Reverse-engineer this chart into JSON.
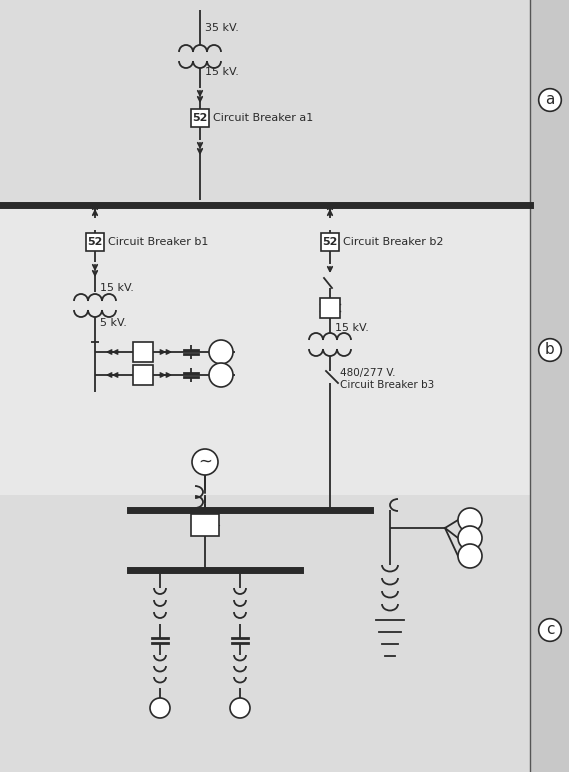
{
  "bg_a": "#dcdcdc",
  "bg_b": "#e8e8e8",
  "bg_c": "#dcdcdc",
  "line_color": "#2a2a2a",
  "label_a": "a",
  "label_b": "b",
  "label_c": "c",
  "text_35kv": "35 kV.",
  "text_15kv_a": "15 kV.",
  "text_cb_a1": "Circuit Breaker a1",
  "text_cb_b1": "Circuit Breaker b1",
  "text_cb_b2": "Circuit Breaker b2",
  "text_15kv_b1": "15 kV.",
  "text_5kv": "5 kV.",
  "text_15kv_b2": "15 kV.",
  "text_480": "480/277 V.\nCircuit Breaker b3",
  "fig_w": 5.69,
  "fig_h": 7.72,
  "dpi": 100
}
